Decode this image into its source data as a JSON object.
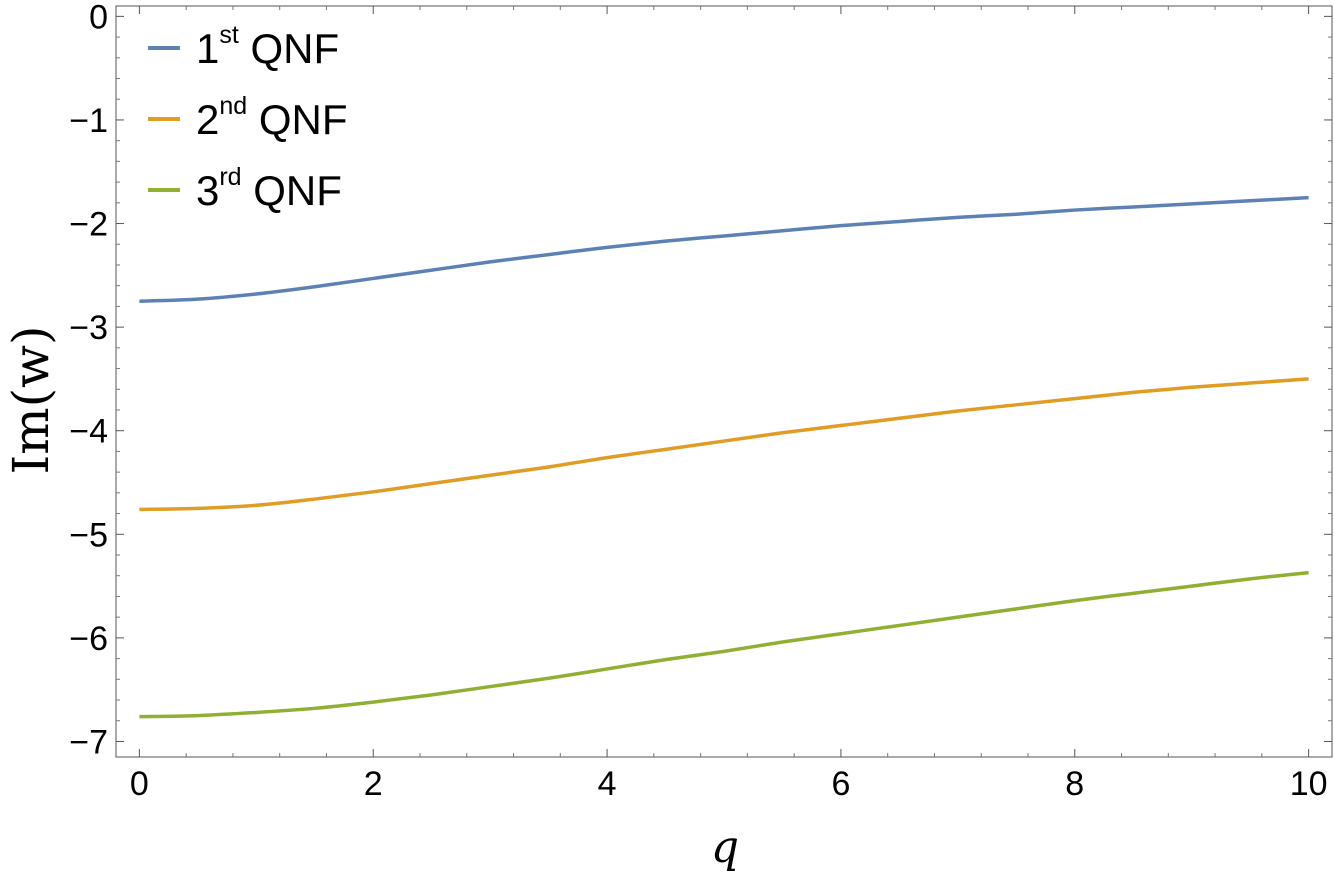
{
  "chart_data": {
    "type": "line",
    "xlabel": "q",
    "ylabel": "Im(w)",
    "xlim": [
      -0.2,
      10.2
    ],
    "ylim": [
      -7.15,
      0.1
    ],
    "x_ticks": [
      0,
      2,
      4,
      6,
      8,
      10
    ],
    "y_ticks": [
      0,
      -1,
      -2,
      -3,
      -4,
      -5,
      -6,
      -7
    ],
    "x_tick_labels": [
      "0",
      "2",
      "4",
      "6",
      "8",
      "10"
    ],
    "y_tick_labels": [
      "0",
      "−1",
      "−2",
      "−3",
      "−4",
      "−5",
      "−6",
      "−7"
    ],
    "grid": false,
    "legend_position": "top-left",
    "x": [
      0,
      0.5,
      1,
      1.5,
      2,
      2.5,
      3,
      3.5,
      4,
      4.5,
      5,
      5.5,
      6,
      6.5,
      7,
      7.5,
      8,
      8.5,
      9,
      9.5,
      10
    ],
    "series": [
      {
        "name": "1st QNF",
        "name_base": "1",
        "name_sup": "st",
        "name_rest": "QNF",
        "color": "#5e81b5",
        "values": [
          -2.75,
          -2.73,
          -2.68,
          -2.61,
          -2.53,
          -2.45,
          -2.37,
          -2.3,
          -2.23,
          -2.17,
          -2.12,
          -2.07,
          -2.02,
          -1.98,
          -1.94,
          -1.91,
          -1.87,
          -1.84,
          -1.81,
          -1.78,
          -1.75
        ]
      },
      {
        "name": "2nd QNF",
        "name_base": "2",
        "name_sup": "nd",
        "name_rest": "QNF",
        "color": "#e19c24",
        "values": [
          -4.76,
          -4.75,
          -4.72,
          -4.66,
          -4.59,
          -4.51,
          -4.43,
          -4.35,
          -4.26,
          -4.18,
          -4.1,
          -4.02,
          -3.95,
          -3.88,
          -3.81,
          -3.75,
          -3.69,
          -3.63,
          -3.58,
          -3.54,
          -3.5
        ]
      },
      {
        "name": "3rd QNF",
        "name_base": "3",
        "name_sup": "rd",
        "name_rest": "QNF",
        "color": "#8fb032",
        "values": [
          -6.76,
          -6.75,
          -6.72,
          -6.68,
          -6.62,
          -6.55,
          -6.47,
          -6.39,
          -6.3,
          -6.21,
          -6.13,
          -6.04,
          -5.96,
          -5.88,
          -5.8,
          -5.72,
          -5.64,
          -5.57,
          -5.5,
          -5.43,
          -5.37
        ]
      }
    ]
  }
}
